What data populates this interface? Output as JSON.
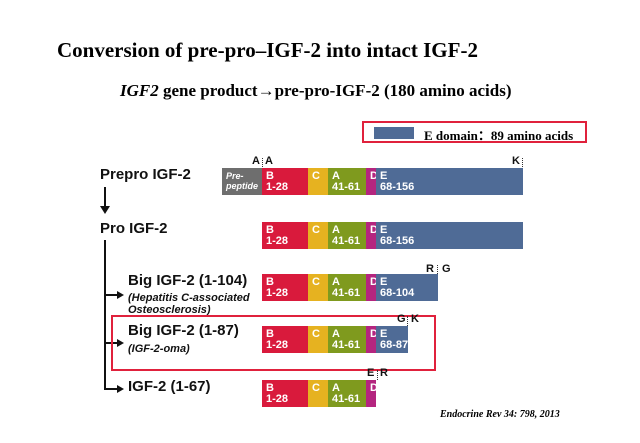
{
  "title": "Conversion of pre-pro–IGF-2 into intact IGF-2",
  "subtitle": {
    "gene": "IGF2",
    "rest": " gene product→pre-pro-IGF-2 (180 amino acids)"
  },
  "legend": {
    "label": "E domain：89 amino acids",
    "color": "#4f6b96"
  },
  "domain_colors": {
    "pre": "#6e6e6e",
    "B": "#d91a3c",
    "C": "#e6b220",
    "A": "#7f9a1e",
    "D": "#b4257f",
    "E": "#4f6b96",
    "highlight": "#e0213c"
  },
  "rows": {
    "prepro": {
      "label": "Prepro IGF-2",
      "pre_line1": "Pre-",
      "pre_line2": "peptide",
      "b_name": "B",
      "b_range": "1-28",
      "c_name": "C",
      "a_name": "A",
      "a_range": "41-61",
      "d_name": "D",
      "e_name": "E",
      "e_range": "68-156",
      "site_a1": "A",
      "site_a2": "A",
      "site_k": "K"
    },
    "pro": {
      "label": "Pro IGF-2",
      "b_name": "B",
      "b_range": "1-28",
      "c_name": "C",
      "a_name": "A",
      "a_range": "41-61",
      "d_name": "D",
      "e_name": "E",
      "e_range": "68-156"
    },
    "big104": {
      "label": "Big IGF-2 (1-104)",
      "note_line1": "(Hepatitis C-associated",
      "note_line2": "Osteosclerosis)",
      "b_name": "B",
      "b_range": "1-28",
      "c_name": "C",
      "a_name": "A",
      "a_range": "41-61",
      "d_name": "D",
      "e_name": "E",
      "e_range": "68-104",
      "site_r": "R",
      "site_g": "G"
    },
    "big87": {
      "label": "Big IGF-2 (1-87)",
      "note_line1": "(IGF-2-oma)",
      "b_name": "B",
      "b_range": "1-28",
      "c_name": "C",
      "a_name": "A",
      "a_range": "41-61",
      "d_name": "D",
      "e_name": "E",
      "e_range": "68-87",
      "site_g": "G",
      "site_k": "K"
    },
    "igf67": {
      "label": "IGF-2 (1-67)",
      "b_name": "B",
      "b_range": "1-28",
      "c_name": "C",
      "a_name": "A",
      "a_range": "41-61",
      "d_name": "D",
      "site_e": "E",
      "site_r": "R"
    }
  },
  "citation": "Endocrine Rev 34: 798, 2013"
}
